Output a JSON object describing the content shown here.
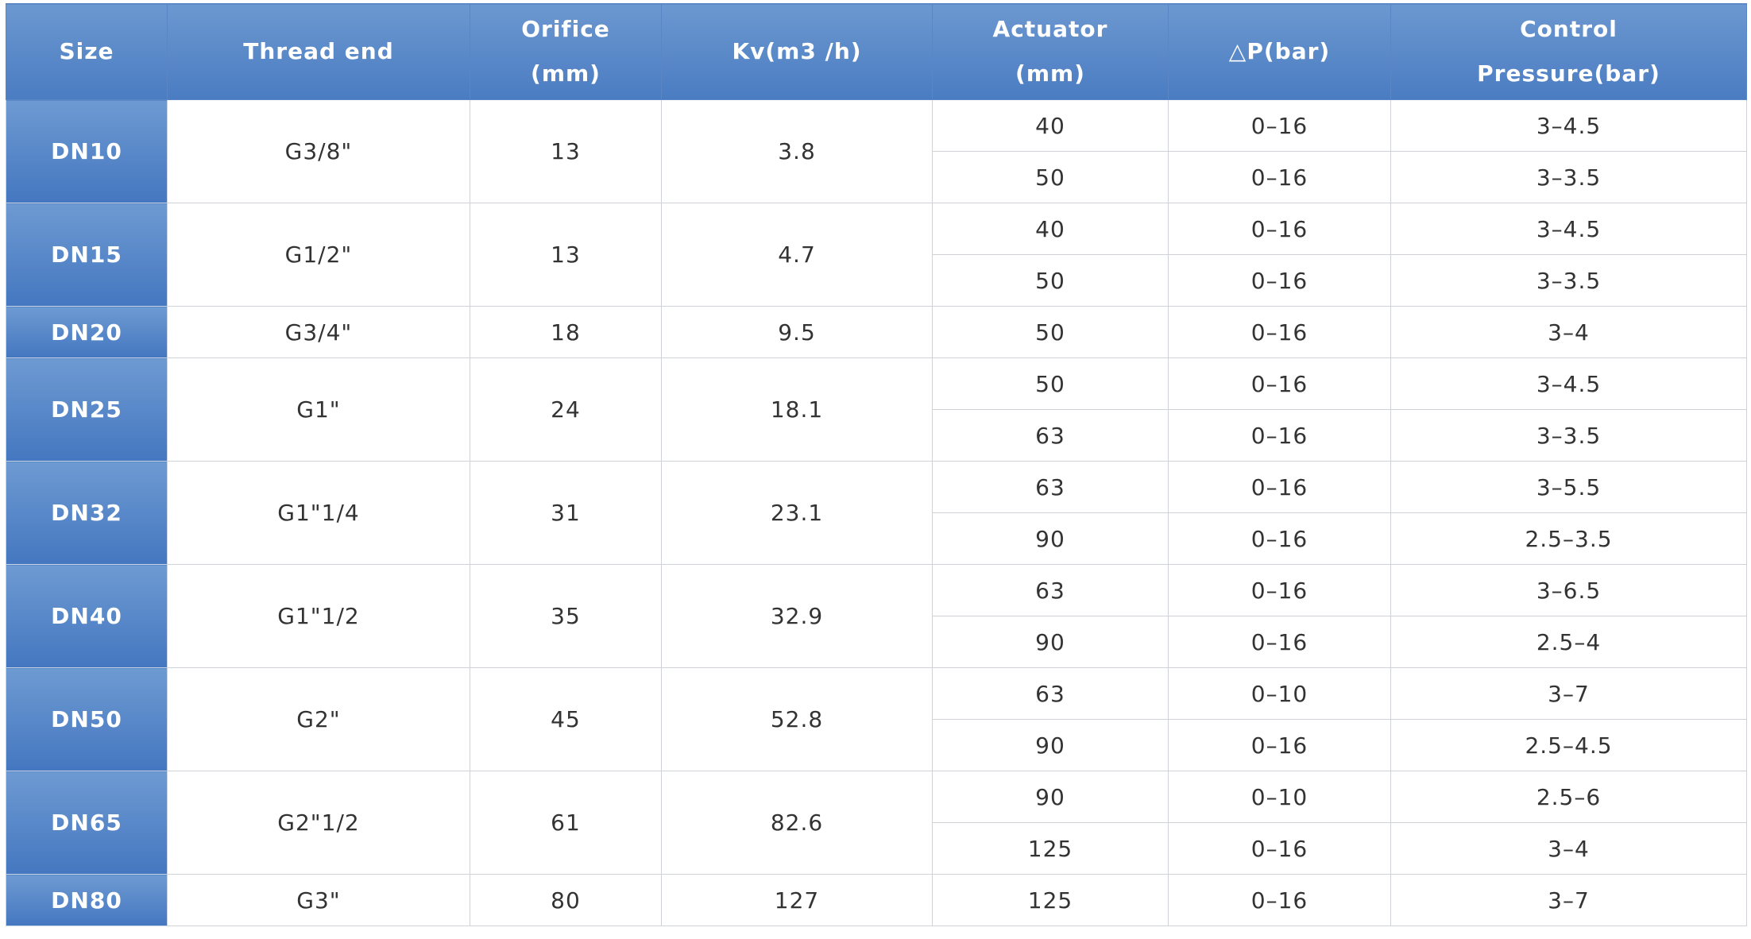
{
  "table": {
    "header": [
      [
        "Size"
      ],
      [
        "Thread end"
      ],
      [
        "Orifice",
        "(mm)"
      ],
      [
        "Kv(m3 /h)"
      ],
      [
        "Actuator",
        "(mm)"
      ],
      [
        "△P(bar)"
      ],
      [
        "Control",
        "Pressure(bar)"
      ]
    ],
    "rows": [
      {
        "size": "DN10",
        "thread": "G3/8\"",
        "orifice": "13",
        "kv": "3.8",
        "options": [
          [
            "40",
            "0–16",
            "3–4.5"
          ],
          [
            "50",
            "0–16",
            "3–3.5"
          ]
        ]
      },
      {
        "size": "DN15",
        "thread": "G1/2\"",
        "orifice": "13",
        "kv": "4.7",
        "options": [
          [
            "40",
            "0–16",
            "3–4.5"
          ],
          [
            "50",
            "0–16",
            "3–3.5"
          ]
        ]
      },
      {
        "size": "DN20",
        "thread": "G3/4\"",
        "orifice": "18",
        "kv": "9.5",
        "options": [
          [
            "50",
            "0–16",
            "3–4"
          ]
        ]
      },
      {
        "size": "DN25",
        "thread": "G1\"",
        "orifice": "24",
        "kv": "18.1",
        "options": [
          [
            "50",
            "0–16",
            "3–4.5"
          ],
          [
            "63",
            "0–16",
            "3–3.5"
          ]
        ]
      },
      {
        "size": "DN32",
        "thread": "G1\"1/4",
        "orifice": "31",
        "kv": "23.1",
        "options": [
          [
            "63",
            "0–16",
            "3–5.5"
          ],
          [
            "90",
            "0–16",
            "2.5–3.5"
          ]
        ]
      },
      {
        "size": "DN40",
        "thread": "G1\"1/2",
        "orifice": "35",
        "kv": "32.9",
        "options": [
          [
            "63",
            "0–16",
            "3–6.5"
          ],
          [
            "90",
            "0–16",
            "2.5–4"
          ]
        ]
      },
      {
        "size": "DN50",
        "thread": "G2\"",
        "orifice": "45",
        "kv": "52.8",
        "options": [
          [
            "63",
            "0–10",
            "3–7"
          ],
          [
            "90",
            "0–16",
            "2.5–4.5"
          ]
        ]
      },
      {
        "size": "DN65",
        "thread": "G2\"1/2",
        "orifice": "61",
        "kv": "82.6",
        "options": [
          [
            "90",
            "0–10",
            "2.5–6"
          ],
          [
            "125",
            "0–16",
            "3–4"
          ]
        ]
      },
      {
        "size": "DN80",
        "thread": "G3\"",
        "orifice": "80",
        "kv": "127",
        "options": [
          [
            "125",
            "0–16",
            "3–7"
          ]
        ]
      }
    ]
  }
}
